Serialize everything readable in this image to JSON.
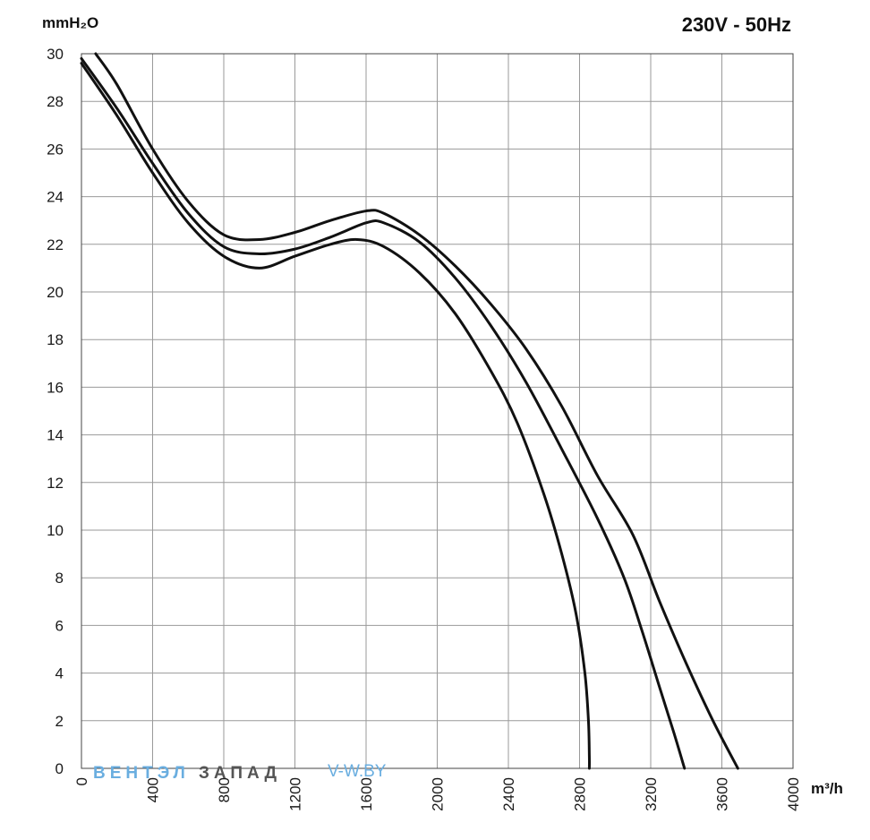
{
  "chart_data": {
    "type": "line",
    "title": "230V - 50Hz",
    "ylabel": "mmH₂O",
    "xlabel": "m³/h",
    "xlim": [
      0,
      4000
    ],
    "ylim": [
      0,
      30
    ],
    "grid": true,
    "xticks": [
      0,
      400,
      800,
      1200,
      1600,
      2000,
      2400,
      2800,
      3200,
      3600,
      4000
    ],
    "yticks": [
      0,
      2,
      4,
      6,
      8,
      10,
      12,
      14,
      16,
      18,
      20,
      22,
      24,
      26,
      28,
      30
    ],
    "series": [
      {
        "color": "#111111",
        "x": [
          0,
          200,
          400,
          600,
          800,
          1000,
          1200,
          1400,
          1550,
          1700,
          1900,
          2100,
          2300,
          2450,
          2600,
          2700,
          2780,
          2830,
          2850,
          2855,
          2855
        ],
        "y": [
          29.6,
          27.4,
          25.0,
          22.9,
          21.5,
          21.0,
          21.5,
          22.0,
          22.2,
          21.9,
          20.8,
          19.1,
          16.7,
          14.5,
          11.5,
          9.0,
          6.5,
          4.0,
          2.0,
          0.5,
          0
        ]
      },
      {
        "color": "#111111",
        "x": [
          0,
          200,
          400,
          600,
          800,
          1000,
          1200,
          1400,
          1600,
          1700,
          1900,
          2100,
          2300,
          2500,
          2700,
          2900,
          3050,
          3150,
          3250,
          3330,
          3390
        ],
        "y": [
          29.8,
          27.7,
          25.4,
          23.3,
          21.9,
          21.6,
          21.8,
          22.3,
          22.9,
          22.9,
          22.1,
          20.6,
          18.6,
          16.2,
          13.4,
          10.5,
          8.0,
          5.8,
          3.4,
          1.5,
          0
        ]
      },
      {
        "color": "#111111",
        "x": [
          80,
          200,
          400,
          600,
          800,
          1000,
          1200,
          1400,
          1600,
          1700,
          1900,
          2100,
          2300,
          2500,
          2700,
          2900,
          3100,
          3250,
          3400,
          3550,
          3690
        ],
        "y": [
          30.0,
          28.7,
          26.0,
          23.8,
          22.4,
          22.2,
          22.5,
          23.0,
          23.4,
          23.3,
          22.4,
          21.1,
          19.5,
          17.6,
          15.2,
          12.3,
          9.8,
          7.0,
          4.4,
          2.0,
          0
        ]
      }
    ]
  },
  "watermark": {
    "part1": "ВЕНТЭЛ",
    "part2": "ЗАПАД",
    "part3": "V-W.BY",
    "color1": "#6aaee0",
    "color2": "#555555"
  }
}
